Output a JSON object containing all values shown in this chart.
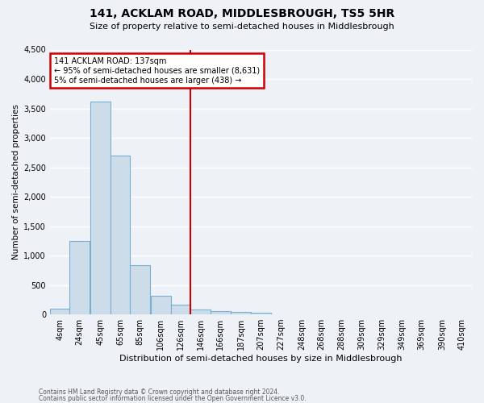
{
  "title": "141, ACKLAM ROAD, MIDDLESBROUGH, TS5 5HR",
  "subtitle": "Size of property relative to semi-detached houses in Middlesbrough",
  "xlabel": "Distribution of semi-detached houses by size in Middlesbrough",
  "ylabel": "Number of semi-detached properties",
  "footnote1": "Contains HM Land Registry data © Crown copyright and database right 2024.",
  "footnote2": "Contains public sector information licensed under the Open Government Licence v3.0.",
  "annotation_line1": "141 ACKLAM ROAD: 137sqm",
  "annotation_line2": "← 95% of semi-detached houses are smaller (8,631)",
  "annotation_line3": "5% of semi-detached houses are larger (438) →",
  "bar_categories": [
    "4sqm",
    "24sqm",
    "45sqm",
    "65sqm",
    "85sqm",
    "106sqm",
    "126sqm",
    "146sqm",
    "166sqm",
    "187sqm",
    "207sqm",
    "227sqm",
    "248sqm",
    "268sqm",
    "288sqm",
    "309sqm",
    "329sqm",
    "349sqm",
    "369sqm",
    "390sqm",
    "410sqm"
  ],
  "bar_values": [
    100,
    1250,
    3620,
    2700,
    840,
    320,
    160,
    80,
    60,
    40,
    35,
    0,
    0,
    0,
    0,
    0,
    0,
    0,
    0,
    0,
    0
  ],
  "bar_centers": [
    4,
    24,
    45,
    65,
    85,
    106,
    126,
    146,
    166,
    187,
    207,
    227,
    248,
    268,
    288,
    309,
    329,
    349,
    369,
    390,
    410
  ],
  "ylim": [
    0,
    4500
  ],
  "bar_color": "#ccdce9",
  "bar_edge_color": "#7aafd4",
  "vline_color": "#cc0000",
  "annotation_box_color": "#cc0000",
  "background_color": "#eef2f7",
  "grid_color": "#ffffff"
}
